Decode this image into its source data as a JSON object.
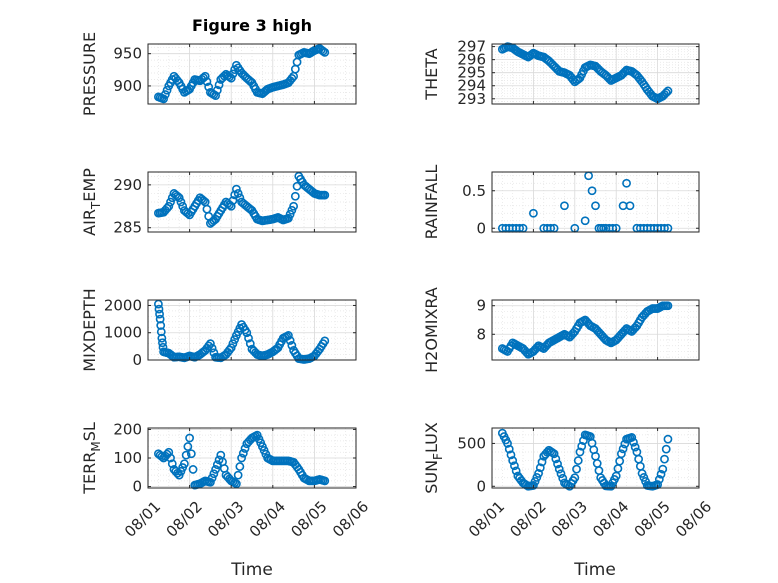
{
  "figure": {
    "title": "Figure 3 high",
    "xlabel": "Time",
    "x_ticks": [
      "08/01",
      "08/02",
      "08/03",
      "08/04",
      "08/05",
      "08/06"
    ]
  },
  "chart_data": [
    {
      "type": "scatter",
      "ylabel": "PRESSURE",
      "ylim": [
        872,
        965
      ],
      "yticks": [
        900,
        950
      ],
      "grid": true,
      "series": [
        {
          "color": "#0072BD",
          "x": [
            "08/01 06:00",
            "08/01 09:00",
            "08/01 12:00",
            "08/01 15:00",
            "08/01 18:00",
            "08/01 21:00",
            "08/02 00:00",
            "08/02 03:00",
            "08/02 06:00",
            "08/02 09:00",
            "08/02 12:00",
            "08/02 15:00",
            "08/02 18:00",
            "08/02 21:00",
            "08/03 00:00",
            "08/03 03:00",
            "08/03 06:00",
            "08/03 09:00",
            "08/03 12:00",
            "08/03 15:00",
            "08/03 18:00",
            "08/03 21:00",
            "08/04 00:00",
            "08/04 03:00",
            "08/04 06:00",
            "08/04 09:00",
            "08/04 12:00",
            "08/04 15:00",
            "08/04 18:00",
            "08/04 21:00",
            "08/05 00:00",
            "08/05 03:00",
            "08/05 06:00"
          ],
          "y": [
            883,
            880,
            900,
            915,
            905,
            890,
            895,
            910,
            908,
            915,
            890,
            885,
            910,
            918,
            912,
            932,
            920,
            912,
            905,
            890,
            888,
            895,
            898,
            900,
            902,
            905,
            915,
            948,
            952,
            950,
            955,
            958,
            952
          ]
        }
      ]
    },
    {
      "type": "scatter",
      "ylabel": "THETA",
      "ylim": [
        292.6,
        297.2
      ],
      "yticks": [
        293,
        294,
        295,
        296,
        297
      ],
      "grid": true,
      "series": [
        {
          "color": "#0072BD",
          "x": [
            "08/01 06:00",
            "08/01 09:00",
            "08/01 12:00",
            "08/01 15:00",
            "08/01 18:00",
            "08/01 21:00",
            "08/02 00:00",
            "08/02 03:00",
            "08/02 06:00",
            "08/02 09:00",
            "08/02 12:00",
            "08/02 15:00",
            "08/02 18:00",
            "08/02 21:00",
            "08/03 00:00",
            "08/03 03:00",
            "08/03 06:00",
            "08/03 09:00",
            "08/03 12:00",
            "08/03 15:00",
            "08/03 18:00",
            "08/03 21:00",
            "08/04 00:00",
            "08/04 03:00",
            "08/04 06:00",
            "08/04 09:00",
            "08/04 12:00",
            "08/04 15:00",
            "08/04 18:00",
            "08/04 21:00",
            "08/05 00:00",
            "08/05 03:00",
            "08/05 06:00"
          ],
          "y": [
            296.8,
            297.0,
            296.9,
            296.6,
            296.4,
            296.2,
            296.5,
            296.3,
            296.2,
            295.9,
            295.5,
            295.1,
            295.0,
            294.8,
            294.3,
            294.6,
            295.4,
            295.6,
            295.5,
            295.1,
            294.8,
            294.4,
            294.6,
            294.8,
            295.2,
            295.1,
            294.8,
            294.3,
            293.7,
            293.2,
            293.0,
            293.2,
            293.6
          ]
        }
      ]
    },
    {
      "type": "scatter",
      "ylabel": "AIR_TEMP",
      "ylim": [
        284.5,
        291.5
      ],
      "yticks": [
        285,
        290
      ],
      "grid": true,
      "series": [
        {
          "color": "#0072BD",
          "x": [
            "08/01 06:00",
            "08/01 09:00",
            "08/01 12:00",
            "08/01 15:00",
            "08/01 18:00",
            "08/01 21:00",
            "08/02 00:00",
            "08/02 03:00",
            "08/02 06:00",
            "08/02 09:00",
            "08/02 12:00",
            "08/02 15:00",
            "08/02 18:00",
            "08/02 21:00",
            "08/03 00:00",
            "08/03 03:00",
            "08/03 06:00",
            "08/03 09:00",
            "08/03 12:00",
            "08/03 15:00",
            "08/03 18:00",
            "08/03 21:00",
            "08/04 00:00",
            "08/04 03:00",
            "08/04 06:00",
            "08/04 09:00",
            "08/04 12:00",
            "08/04 15:00",
            "08/04 18:00",
            "08/04 21:00",
            "08/05 00:00",
            "08/05 03:00",
            "08/05 06:00"
          ],
          "y": [
            286.7,
            286.8,
            287.5,
            289.0,
            288.5,
            287.0,
            286.5,
            287.5,
            288.5,
            288.0,
            285.5,
            286.0,
            287.0,
            288.0,
            287.5,
            289.5,
            288.0,
            287.5,
            287.0,
            286.0,
            285.8,
            285.9,
            286.0,
            286.2,
            285.9,
            286.1,
            287.5,
            291.0,
            290.0,
            289.5,
            289.0,
            288.8,
            288.8
          ]
        }
      ]
    },
    {
      "type": "scatter",
      "ylabel": "RAINFALL",
      "ylim": [
        -0.05,
        0.75
      ],
      "yticks": [
        0,
        0.5
      ],
      "grid": true,
      "series": [
        {
          "color": "#0072BD",
          "x": [
            "08/01 06:00",
            "08/01 12:00",
            "08/01 18:00",
            "08/02 00:00",
            "08/02 06:00",
            "08/02 12:00",
            "08/02 18:00",
            "08/03 00:00",
            "08/03 06:00",
            "08/03 08:00",
            "08/03 10:00",
            "08/03 12:00",
            "08/03 14:00",
            "08/03 18:00",
            "08/04 00:00",
            "08/04 04:00",
            "08/04 06:00",
            "08/04 08:00",
            "08/04 12:00",
            "08/04 18:00",
            "08/05 00:00",
            "08/05 06:00"
          ],
          "y": [
            0,
            0,
            0,
            0.2,
            0,
            0,
            0.3,
            0,
            0.1,
            0.7,
            0.5,
            0.3,
            0,
            0,
            0,
            0.3,
            0.6,
            0.3,
            0,
            0,
            0,
            0
          ]
        }
      ]
    },
    {
      "type": "scatter",
      "ylabel": "MIXDEPTH",
      "ylim": [
        0,
        2200
      ],
      "yticks": [
        0,
        1000,
        2000
      ],
      "grid": true,
      "series": [
        {
          "color": "#0072BD",
          "x": [
            "08/01 06:00",
            "08/01 07:00",
            "08/01 08:00",
            "08/01 09:00",
            "08/01 12:00",
            "08/01 15:00",
            "08/01 18:00",
            "08/01 21:00",
            "08/02 00:00",
            "08/02 03:00",
            "08/02 06:00",
            "08/02 09:00",
            "08/02 12:00",
            "08/02 15:00",
            "08/02 18:00",
            "08/02 21:00",
            "08/03 00:00",
            "08/03 03:00",
            "08/03 06:00",
            "08/03 09:00",
            "08/03 12:00",
            "08/03 15:00",
            "08/03 18:00",
            "08/03 21:00",
            "08/04 00:00",
            "08/04 03:00",
            "08/04 06:00",
            "08/04 09:00",
            "08/04 12:00",
            "08/04 15:00",
            "08/04 18:00",
            "08/04 21:00",
            "08/05 00:00",
            "08/05 03:00",
            "08/05 06:00"
          ],
          "y": [
            2050,
            1500,
            800,
            300,
            250,
            100,
            120,
            80,
            150,
            100,
            200,
            350,
            600,
            100,
            80,
            200,
            450,
            900,
            1300,
            1000,
            400,
            200,
            150,
            200,
            300,
            450,
            800,
            900,
            350,
            50,
            20,
            50,
            150,
            400,
            700
          ]
        }
      ]
    },
    {
      "type": "scatter",
      "ylabel": "H2OMIXRA",
      "ylim": [
        7.1,
        9.2
      ],
      "yticks": [
        8,
        9
      ],
      "grid": true,
      "series": [
        {
          "color": "#0072BD",
          "x": [
            "08/01 06:00",
            "08/01 09:00",
            "08/01 12:00",
            "08/01 15:00",
            "08/01 18:00",
            "08/01 21:00",
            "08/02 00:00",
            "08/02 03:00",
            "08/02 06:00",
            "08/02 09:00",
            "08/02 12:00",
            "08/02 15:00",
            "08/02 18:00",
            "08/02 21:00",
            "08/03 00:00",
            "08/03 03:00",
            "08/03 06:00",
            "08/03 09:00",
            "08/03 12:00",
            "08/03 15:00",
            "08/03 18:00",
            "08/03 21:00",
            "08/04 00:00",
            "08/04 03:00",
            "08/04 06:00",
            "08/04 09:00",
            "08/04 12:00",
            "08/04 15:00",
            "08/04 18:00",
            "08/04 21:00",
            "08/05 00:00",
            "08/05 03:00",
            "08/05 06:00"
          ],
          "y": [
            7.5,
            7.4,
            7.7,
            7.6,
            7.5,
            7.3,
            7.4,
            7.6,
            7.5,
            7.7,
            7.8,
            7.9,
            8.0,
            7.9,
            8.1,
            8.4,
            8.5,
            8.3,
            8.2,
            8.0,
            7.8,
            7.7,
            7.8,
            8.0,
            8.2,
            8.1,
            8.3,
            8.6,
            8.8,
            8.9,
            8.9,
            9.0,
            9.0
          ]
        }
      ]
    },
    {
      "type": "scatter",
      "ylabel": "TERR_MSL",
      "ylim": [
        -5,
        205
      ],
      "yticks": [
        0,
        100,
        200
      ],
      "grid": true,
      "series": [
        {
          "color": "#0072BD",
          "x": [
            "08/01 06:00",
            "08/01 09:00",
            "08/01 12:00",
            "08/01 15:00",
            "08/01 18:00",
            "08/01 21:00",
            "08/02 00:00",
            "08/02 03:00",
            "08/02 06:00",
            "08/02 09:00",
            "08/02 12:00",
            "08/02 15:00",
            "08/02 18:00",
            "08/02 21:00",
            "08/03 00:00",
            "08/03 03:00",
            "08/03 06:00",
            "08/03 09:00",
            "08/03 12:00",
            "08/03 15:00",
            "08/03 18:00",
            "08/03 21:00",
            "08/04 00:00",
            "08/04 03:00",
            "08/04 06:00",
            "08/04 09:00",
            "08/04 12:00",
            "08/04 15:00",
            "08/04 18:00",
            "08/04 21:00",
            "08/05 00:00",
            "08/05 03:00",
            "08/05 06:00"
          ],
          "y": [
            115,
            100,
            120,
            60,
            40,
            80,
            170,
            5,
            10,
            20,
            15,
            60,
            110,
            40,
            20,
            10,
            100,
            150,
            170,
            180,
            140,
            100,
            90,
            90,
            90,
            90,
            85,
            60,
            30,
            20,
            20,
            25,
            20
          ]
        }
      ]
    },
    {
      "type": "scatter",
      "ylabel": "SUN_FLUX",
      "ylim": [
        -20,
        680
      ],
      "yticks": [
        0,
        500
      ],
      "grid": true,
      "series": [
        {
          "color": "#0072BD",
          "x": [
            "08/01 06:00",
            "08/01 09:00",
            "08/01 12:00",
            "08/01 15:00",
            "08/01 18:00",
            "08/01 21:00",
            "08/02 00:00",
            "08/02 03:00",
            "08/02 06:00",
            "08/02 09:00",
            "08/02 12:00",
            "08/02 15:00",
            "08/02 18:00",
            "08/02 21:00",
            "08/03 00:00",
            "08/03 03:00",
            "08/03 06:00",
            "08/03 09:00",
            "08/03 12:00",
            "08/03 15:00",
            "08/03 18:00",
            "08/03 21:00",
            "08/04 00:00",
            "08/04 03:00",
            "08/04 06:00",
            "08/04 09:00",
            "08/04 12:00",
            "08/04 15:00",
            "08/04 18:00",
            "08/04 21:00",
            "08/05 00:00",
            "08/05 03:00",
            "08/05 06:00"
          ],
          "y": [
            620,
            500,
            300,
            120,
            40,
            0,
            10,
            150,
            350,
            420,
            380,
            200,
            40,
            0,
            100,
            400,
            600,
            580,
            350,
            100,
            5,
            0,
            120,
            380,
            550,
            570,
            400,
            150,
            10,
            0,
            20,
            200,
            550
          ]
        }
      ]
    }
  ]
}
